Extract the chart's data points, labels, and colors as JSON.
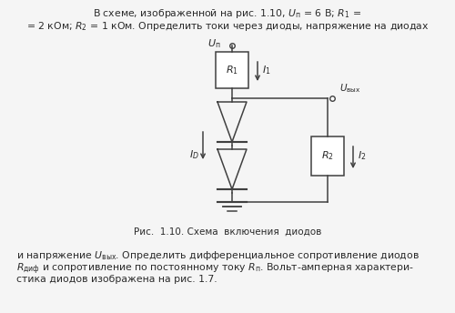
{
  "bg_color": "#f5f5f5",
  "line_color": "#404040",
  "text_color": "#2a2a2a",
  "box_color": "#ffffff",
  "caption": "Рис.  1.10. Схема  включения  диодов"
}
